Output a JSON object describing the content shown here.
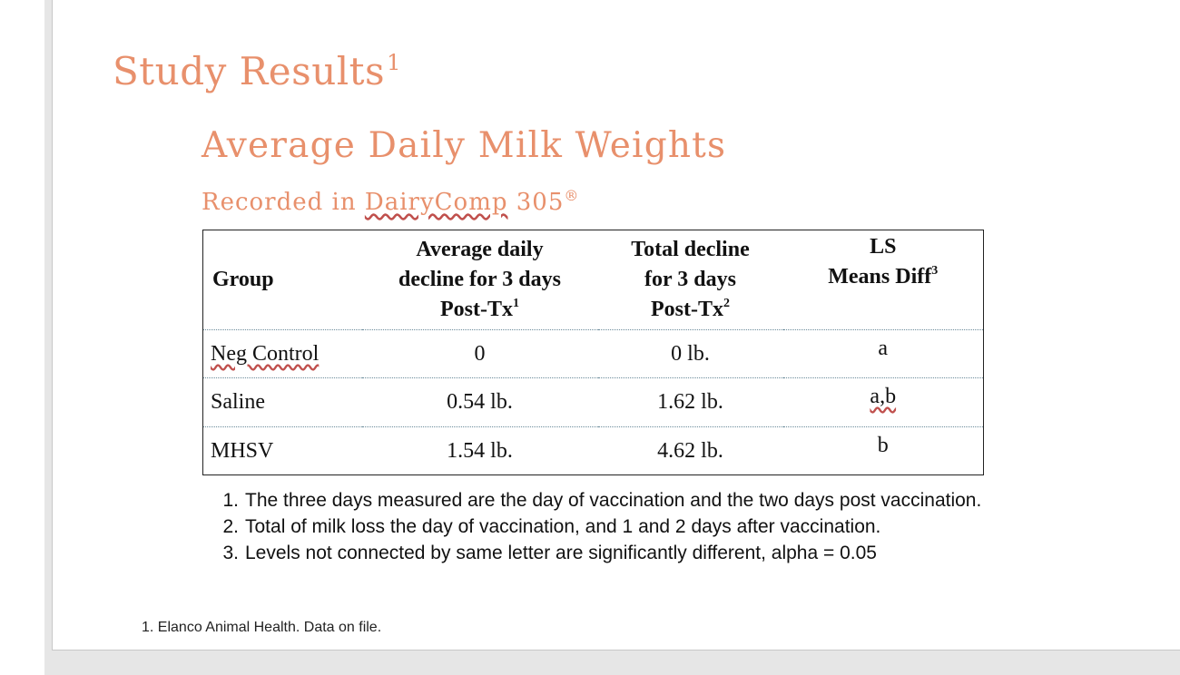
{
  "slide": {
    "title": "Study Results",
    "title_sup": "1",
    "heading": "Average Daily Milk Weights",
    "subheading_prefix": "Recorded in ",
    "subheading_brand": "DairyComp",
    "subheading_suffix": " 305",
    "subheading_mark": "®",
    "accent_color": "#e8906c"
  },
  "table": {
    "headers": {
      "group": "Group",
      "avg_line1": "Average daily",
      "avg_line2": "decline for 3 days",
      "avg_line3": "Post-Tx",
      "avg_sup": "1",
      "total_line1": "Total decline",
      "total_line2": "for 3 days",
      "total_line3": "Post-Tx",
      "total_sup": "2",
      "ls_line1": "LS",
      "ls_line2": "Means Diff",
      "ls_sup": "3"
    },
    "rows": [
      {
        "group": "Neg Control",
        "avg": "0",
        "total": "0 lb.",
        "ls": "a"
      },
      {
        "group": "Saline",
        "avg": "0.54 lb.",
        "total": "1.62 lb.",
        "ls": "a,b"
      },
      {
        "group": "MHSV",
        "avg": "1.54 lb.",
        "total": "4.62 lb.",
        "ls": "b"
      }
    ]
  },
  "footnotes": [
    {
      "num": "1.",
      "text": "The three days measured are the day of vaccination and the two days post vaccination."
    },
    {
      "num": "2.",
      "text": "Total of milk loss the day of vaccination, and 1 and 2 days after vaccination."
    },
    {
      "num": "3.",
      "text": "Levels not connected by same letter are significantly different, alpha = 0.05"
    }
  ],
  "source": "1. Elanco Animal Health. Data on file."
}
